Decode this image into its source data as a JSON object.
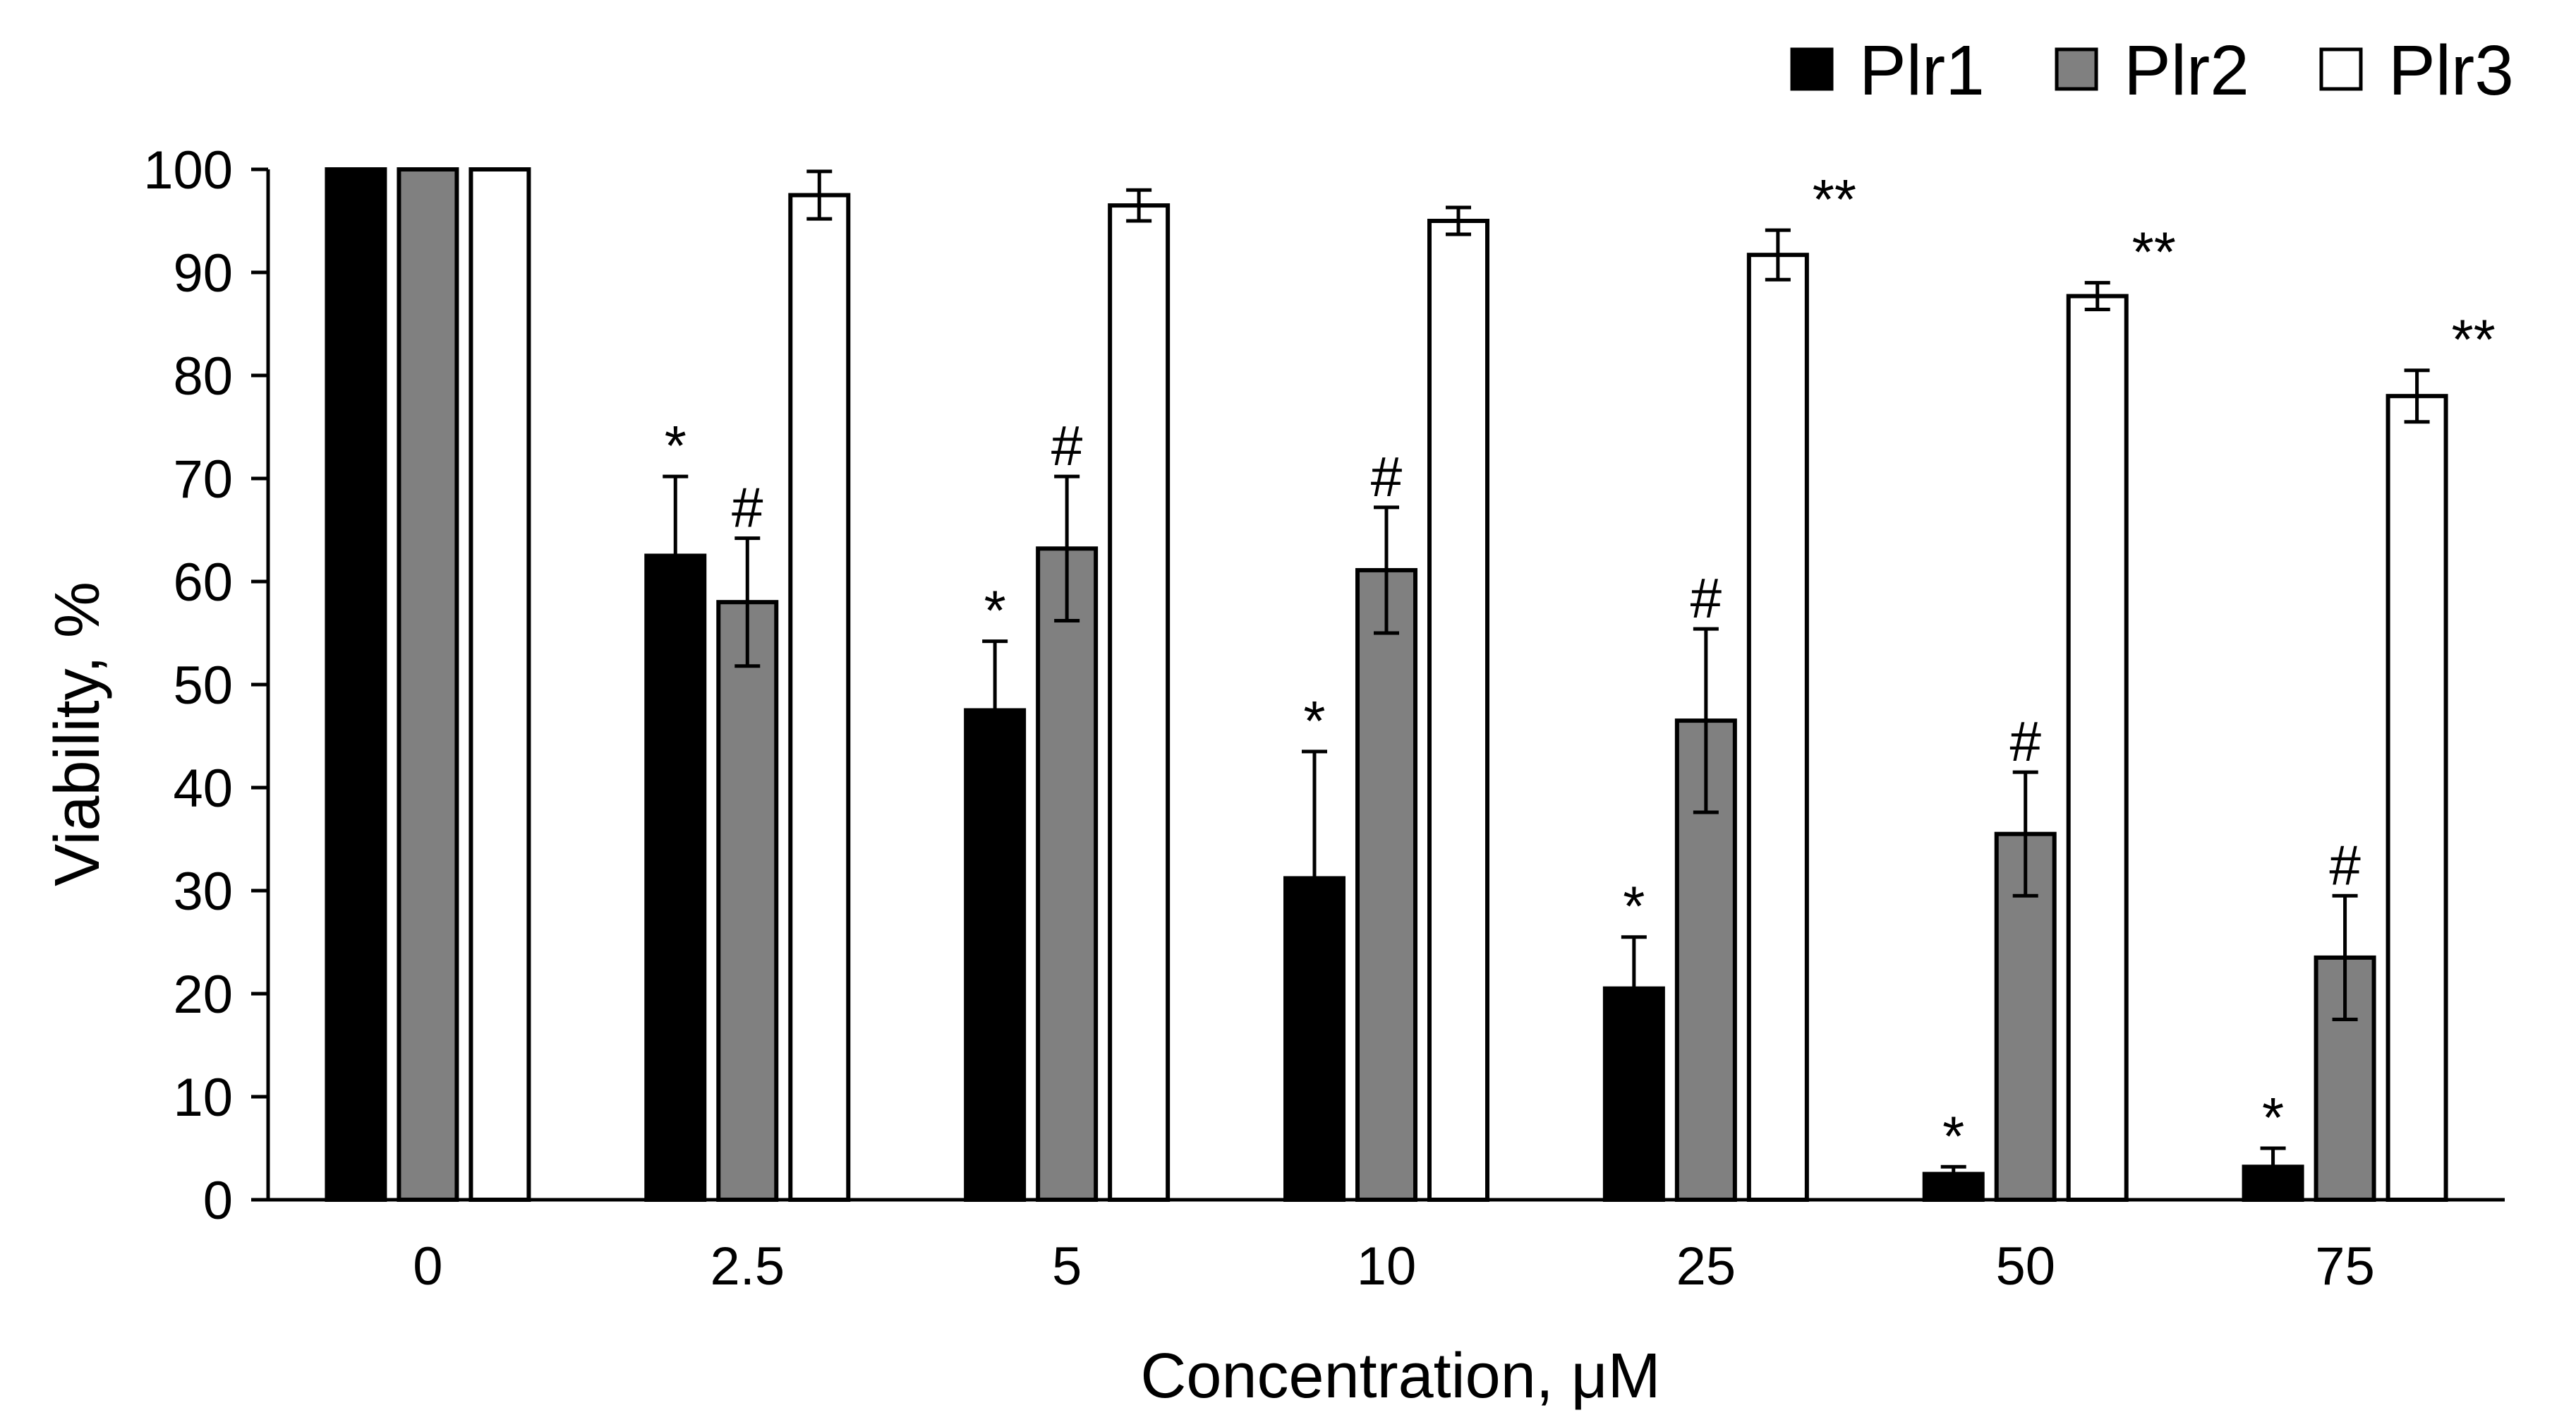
{
  "chart_data": {
    "type": "bar",
    "title": "",
    "xlabel": "Concentration, μM",
    "ylabel": "Viability, %",
    "ylim": [
      0,
      100
    ],
    "yticks": [
      0,
      10,
      20,
      30,
      40,
      50,
      60,
      70,
      80,
      90,
      100
    ],
    "grid": false,
    "legend_position": "top-right",
    "categories": [
      "0",
      "2.5",
      "5",
      "10",
      "25",
      "50",
      "75"
    ],
    "series": [
      {
        "name": "Plr1",
        "color": "#000000",
        "values": [
          100,
          62.5,
          47.5,
          31.2,
          20.5,
          2.5,
          3.2
        ],
        "errors": [
          0,
          7.7,
          6.7,
          12.3,
          5.0,
          0.7,
          1.8
        ],
        "marks": [
          "",
          "*",
          "*",
          "*",
          "*",
          "*",
          "*"
        ]
      },
      {
        "name": "Plr2",
        "color": "#808080",
        "values": [
          100,
          58.0,
          63.2,
          61.1,
          46.5,
          35.5,
          23.5
        ],
        "errors": [
          0,
          6.2,
          7.0,
          6.1,
          8.9,
          6.0,
          6.0
        ],
        "marks": [
          "",
          "#",
          "#",
          "#",
          "#",
          "#",
          "#"
        ]
      },
      {
        "name": "Plr3",
        "color": "#ffffff",
        "values": [
          100,
          97.5,
          96.5,
          95.0,
          91.7,
          87.7,
          78.0
        ],
        "errors": [
          0,
          2.3,
          1.5,
          1.3,
          2.4,
          1.3,
          2.5
        ],
        "marks": [
          "",
          "",
          "",
          "",
          "**",
          "**",
          "**"
        ]
      }
    ]
  }
}
